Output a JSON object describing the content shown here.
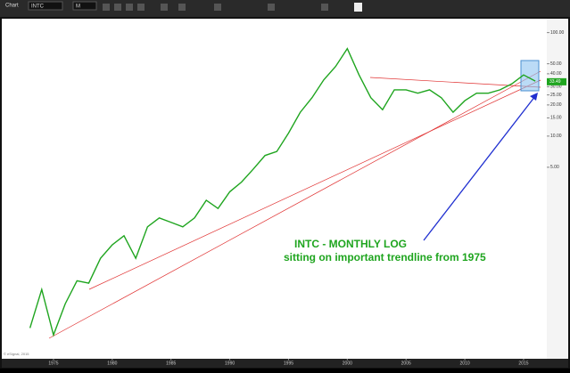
{
  "toolbar": {
    "window": "Chart",
    "symbol": "INTC",
    "interval": "M"
  },
  "footer": "© eSignal, 2015",
  "chart_data": {
    "type": "line",
    "annotations": [
      "INTC - MONTHLY LOG",
      "sitting on important trendline from 1975"
    ],
    "x": [
      1973,
      1974,
      1975,
      1976,
      1977,
      1978,
      1979,
      1980,
      1981,
      1982,
      1983,
      1984,
      1985,
      1986,
      1987,
      1988,
      1989,
      1990,
      1991,
      1992,
      1993,
      1994,
      1995,
      1996,
      1997,
      1998,
      1999,
      2000,
      2001,
      2002,
      2003,
      2004,
      2005,
      2006,
      2007,
      2008,
      2009,
      2010,
      2011,
      2012,
      2013,
      2014,
      2015,
      2016
    ],
    "series": [
      {
        "color": "#1fa51f",
        "values": [
          0.14,
          0.33,
          0.12,
          0.24,
          0.4,
          0.38,
          0.66,
          0.89,
          1.09,
          0.66,
          1.33,
          1.62,
          1.47,
          1.33,
          1.62,
          2.4,
          2.0,
          2.9,
          3.6,
          4.8,
          6.5,
          7.1,
          10.7,
          17,
          23.5,
          35,
          47,
          70,
          39,
          23.5,
          18,
          28,
          28,
          26,
          28,
          23.5,
          17,
          22,
          26,
          26,
          28,
          32,
          39,
          34
        ]
      }
    ],
    "last_price": {
      "value": 33.49,
      "label": "33.49"
    },
    "log_scale": true,
    "xlim": [
      1970.6,
      2016.9
    ],
    "xticks": [
      1975,
      1980,
      1985,
      1990,
      1995,
      2000,
      2005,
      2010,
      2015
    ],
    "ylim": [
      0.078,
      114
    ],
    "yticks": [
      {
        "value": 100,
        "label": "100.00"
      },
      {
        "value": 50,
        "label": "50.00"
      },
      {
        "value": 40,
        "label": "40.00"
      },
      {
        "value": 30,
        "label": "30.00"
      },
      {
        "value": 25,
        "label": "25.00"
      },
      {
        "value": 20,
        "label": "20.00"
      },
      {
        "value": 15,
        "label": "15.00"
      },
      {
        "value": 10,
        "label": "10.00"
      },
      {
        "value": 5,
        "label": "5.00"
      }
    ],
    "grid": false
  }
}
